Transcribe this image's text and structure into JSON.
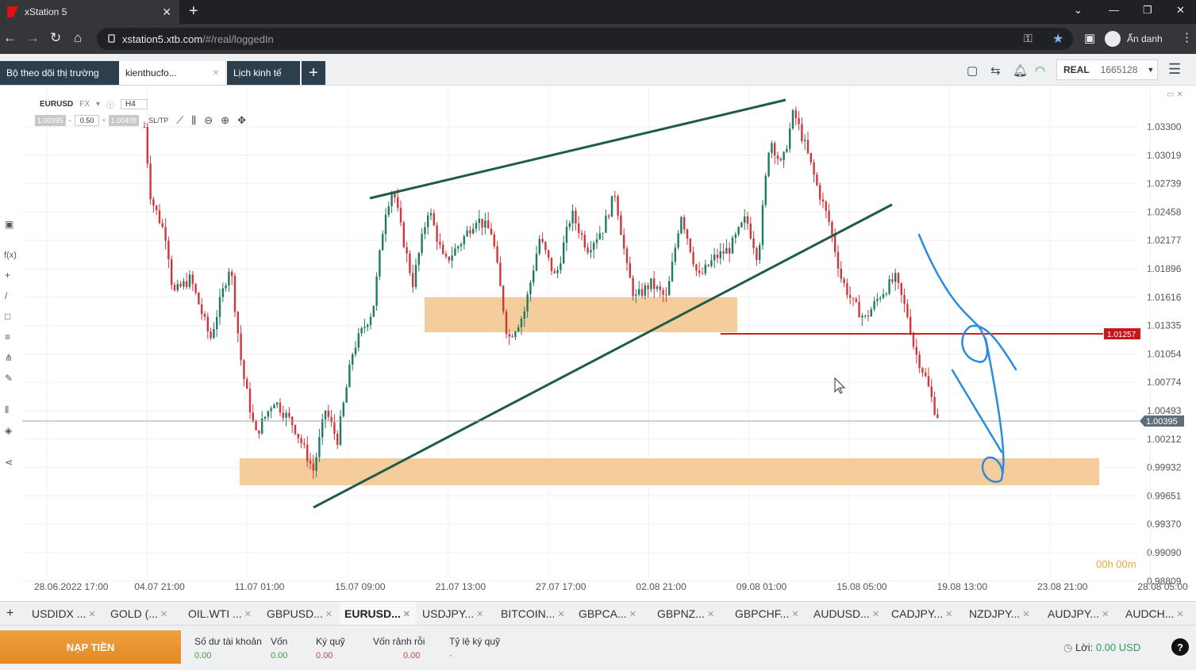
{
  "browser": {
    "tab_title": "xStation 5",
    "url_host": "xstation5.xtb.com",
    "url_path": "/#/real/loggedIn",
    "profile_label": "Ẩn danh"
  },
  "header": {
    "tabs": [
      {
        "label": "Bộ theo dõi thị trường"
      },
      {
        "label": "kienthucfo..."
      },
      {
        "label": "Lịch kinh tế"
      }
    ],
    "account_type": "REAL",
    "account_number": "1665128"
  },
  "chart": {
    "symbol": "EURUSD",
    "market": "FX",
    "timeframe": "H4",
    "sell_price": "1.00395",
    "lot": "0.50",
    "buy_price": "1.00409",
    "sltp_label": "SL/TP",
    "countdown": "00h 00m",
    "price_labels": [
      "1.03300",
      "1.03019",
      "1.02739",
      "1.02458",
      "1.02177",
      "1.01896",
      "1.01616",
      "1.01335",
      "1.01054",
      "1.00774",
      "1.00493",
      "1.00212",
      "0.99932",
      "0.99651",
      "0.99370",
      "0.99090",
      "0.98809"
    ],
    "current_price_tag": "1.00395",
    "line_price_tag": "1.01257",
    "time_labels": [
      "28.06.2022 17:00",
      "04.07 21:00",
      "11.07 01:00",
      "15.07 09:00",
      "21.07 13:00",
      "27.07 17:00",
      "02.08 21:00",
      "09.08 01:00",
      "15.08 05:00",
      "19.08 13:00",
      "23.08 21:00",
      "28.08 05:00"
    ],
    "colors": {
      "up": "#1f7a63",
      "down": "#d0363a",
      "zone": "#f3c48c",
      "trend": "#1e5c4a",
      "hline": "#d0201c",
      "marker": "#2a8ce0"
    }
  },
  "instruments": [
    "USDIDX ...",
    "GOLD (...",
    "OIL.WTI ...",
    "GBPUSD...",
    "EURUSD...",
    "USDJPY...",
    "BITCOIN...",
    "GBPCA...",
    "GBPNZ...",
    "GBPCHF...",
    "AUDUSD...",
    "CADJPY...",
    "NZDJPY...",
    "AUDJPY...",
    "AUDCH..."
  ],
  "account": {
    "deposit_label": "NẠP TIỀN",
    "items": [
      {
        "label": "Số dư tài khoản",
        "value": "0.00"
      },
      {
        "label": "Vốn",
        "value": "0.00"
      },
      {
        "label": "Ký quỹ",
        "value": "0.00"
      },
      {
        "label": "Vốn rảnh rỗi",
        "value": "0.00"
      },
      {
        "label": "Tỷ lệ ký quỹ",
        "value": "-"
      }
    ],
    "profit_label": "Lời:",
    "profit_value": "0.00 USD"
  }
}
